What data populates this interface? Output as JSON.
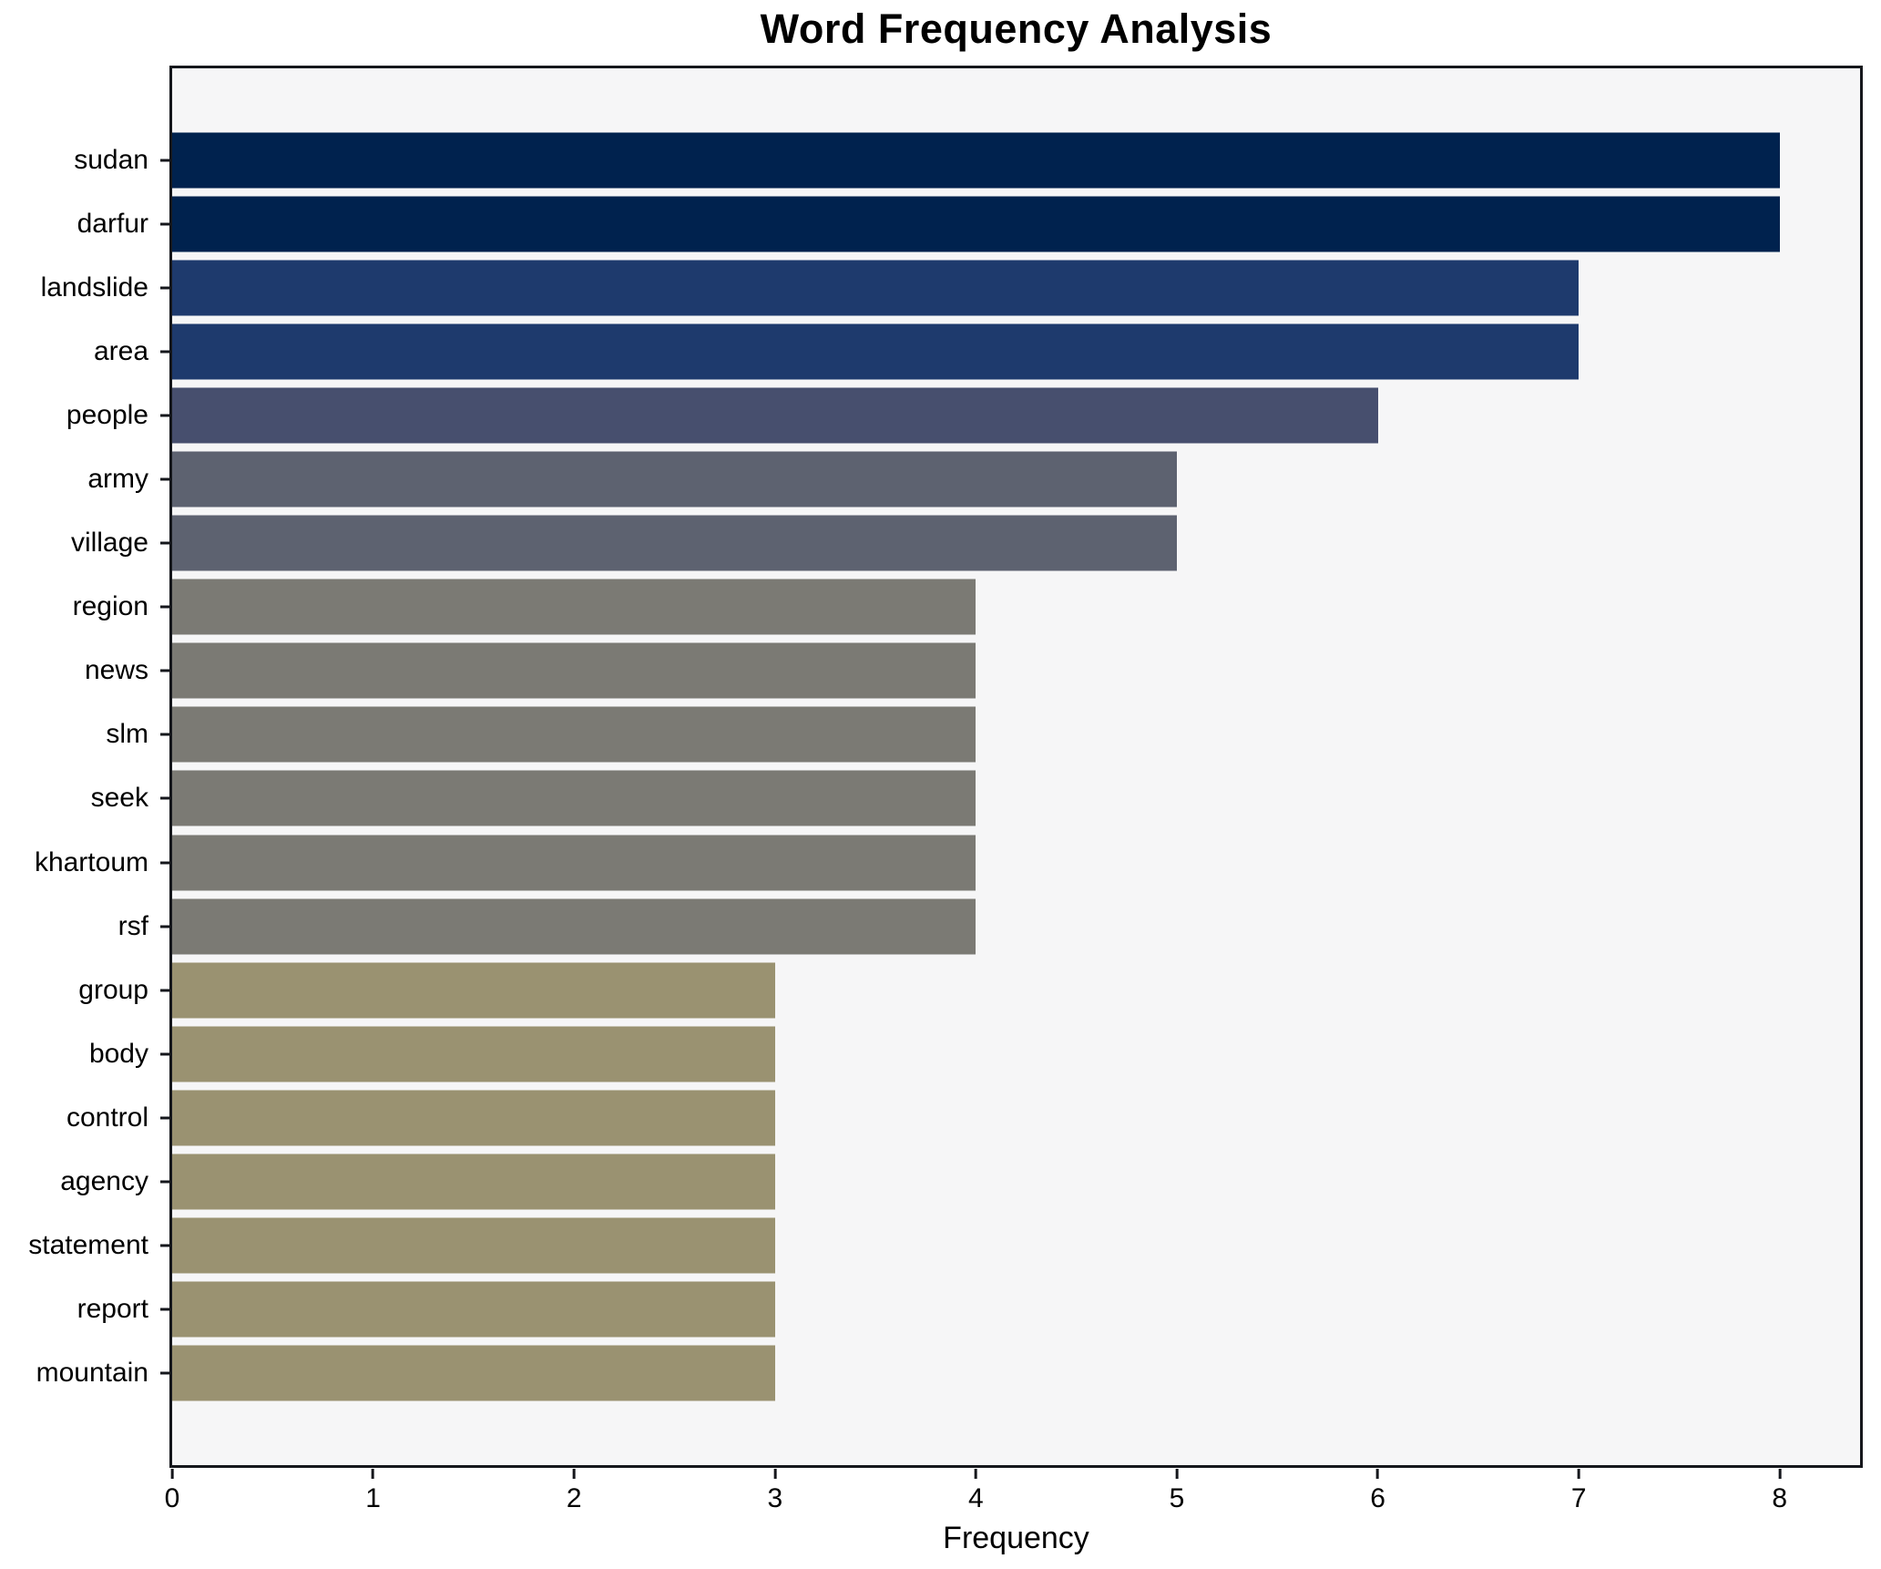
{
  "chart_data": {
    "type": "bar",
    "orientation": "horizontal",
    "title": "Word Frequency Analysis",
    "xlabel": "Frequency",
    "ylabel": "",
    "categories": [
      "sudan",
      "darfur",
      "landslide",
      "area",
      "people",
      "army",
      "village",
      "region",
      "news",
      "slm",
      "seek",
      "khartoum",
      "rsf",
      "group",
      "body",
      "control",
      "agency",
      "statement",
      "report",
      "mountain"
    ],
    "values": [
      8,
      8,
      7,
      7,
      6,
      5,
      5,
      4,
      4,
      4,
      4,
      4,
      4,
      3,
      3,
      3,
      3,
      3,
      3,
      3
    ],
    "bar_colors": [
      "#00224e",
      "#00224e",
      "#1e3a6d",
      "#1e3a6d",
      "#474f6e",
      "#5d6270",
      "#5d6270",
      "#7b7a74",
      "#7b7a74",
      "#7b7a74",
      "#7b7a74",
      "#7b7a74",
      "#7b7a74",
      "#9a9271",
      "#9a9271",
      "#9a9271",
      "#9a9271",
      "#9a9271",
      "#9a9271",
      "#9a9271"
    ],
    "xlim": [
      0,
      8.4
    ],
    "xticks": [
      0,
      1,
      2,
      3,
      4,
      5,
      6,
      7,
      8
    ],
    "grid": false,
    "legend": null,
    "plot_background": "#f6f6f7",
    "figure_background": "#ffffff",
    "spine_color": "#15171c"
  }
}
